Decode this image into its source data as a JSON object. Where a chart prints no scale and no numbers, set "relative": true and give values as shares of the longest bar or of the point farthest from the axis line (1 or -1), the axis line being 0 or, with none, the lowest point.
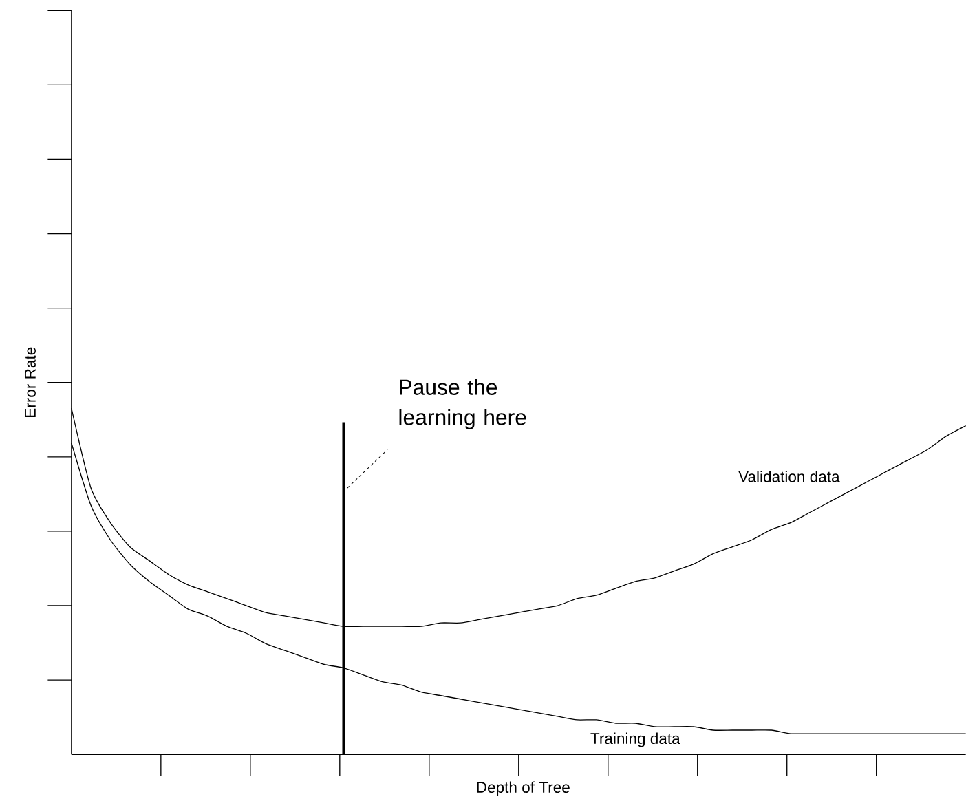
{
  "chart_data": {
    "type": "line",
    "relative": true,
    "xlabel": "Depth of Tree",
    "ylabel": "Error Rate",
    "categories": [
      null,
      null,
      null,
      null,
      null,
      null,
      null,
      null,
      null,
      null,
      null,
      null,
      null,
      null,
      null,
      null,
      null,
      null,
      null,
      null,
      null,
      null,
      null,
      null,
      null,
      null,
      null,
      null,
      null,
      null,
      null,
      null,
      null,
      null,
      null,
      null,
      null,
      null,
      null,
      null,
      null,
      null,
      null,
      null,
      null,
      null,
      null
    ],
    "series": [
      {
        "name": "Validation data",
        "color": "#000000",
        "values": [
          1.0,
          0.77,
          0.67,
          0.6,
          0.56,
          0.52,
          0.49,
          0.47,
          0.45,
          0.43,
          0.41,
          0.4,
          0.39,
          0.38,
          0.37,
          0.37,
          0.37,
          0.37,
          0.37,
          0.38,
          0.38,
          0.39,
          0.4,
          0.41,
          0.42,
          0.43,
          0.45,
          0.46,
          0.48,
          0.5,
          0.51,
          0.53,
          0.55,
          0.58,
          0.6,
          0.62,
          0.65,
          0.67,
          0.7,
          0.73,
          0.76,
          0.79,
          0.82,
          0.85,
          0.88,
          0.92,
          0.95
        ]
      },
      {
        "name": "Training data",
        "color": "#000000",
        "values": [
          0.9,
          0.72,
          0.62,
          0.55,
          0.5,
          0.46,
          0.42,
          0.4,
          0.37,
          0.35,
          0.32,
          0.3,
          0.28,
          0.26,
          0.25,
          0.23,
          0.21,
          0.2,
          0.18,
          0.17,
          0.16,
          0.15,
          0.14,
          0.13,
          0.12,
          0.11,
          0.1,
          0.1,
          0.09,
          0.09,
          0.08,
          0.08,
          0.08,
          0.07,
          0.07,
          0.07,
          0.07,
          0.06,
          0.06,
          0.06,
          0.06,
          0.06,
          0.06,
          0.06,
          0.06,
          0.06,
          0.06
        ]
      }
    ],
    "annotations": [
      "Pause the learning here"
    ],
    "marker": "none",
    "line_style": "solid"
  }
}
